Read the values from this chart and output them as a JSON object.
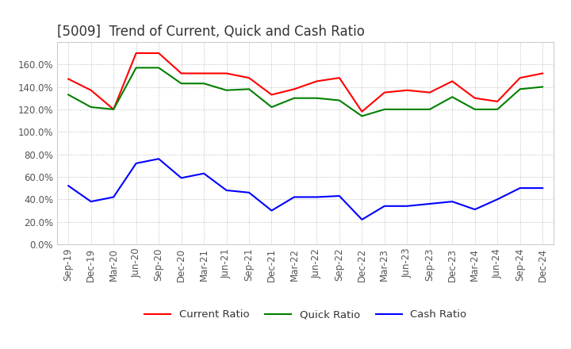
{
  "title": "[5009]  Trend of Current, Quick and Cash Ratio",
  "x_labels": [
    "Sep-19",
    "Dec-19",
    "Mar-20",
    "Jun-20",
    "Sep-20",
    "Dec-20",
    "Mar-21",
    "Jun-21",
    "Sep-21",
    "Dec-21",
    "Mar-22",
    "Jun-22",
    "Sep-22",
    "Dec-22",
    "Mar-23",
    "Jun-23",
    "Sep-23",
    "Dec-23",
    "Mar-24",
    "Jun-24",
    "Sep-24",
    "Dec-24"
  ],
  "current_ratio": [
    147,
    137,
    120,
    170,
    170,
    152,
    152,
    152,
    148,
    133,
    138,
    145,
    148,
    118,
    135,
    137,
    135,
    145,
    130,
    127,
    148,
    152
  ],
  "quick_ratio": [
    133,
    122,
    120,
    157,
    157,
    143,
    143,
    137,
    138,
    122,
    130,
    130,
    128,
    114,
    120,
    120,
    120,
    131,
    120,
    120,
    138,
    140
  ],
  "cash_ratio": [
    52,
    38,
    42,
    72,
    76,
    59,
    63,
    48,
    46,
    30,
    42,
    42,
    43,
    22,
    34,
    34,
    36,
    38,
    31,
    40,
    50,
    50
  ],
  "ylim": [
    0,
    180
  ],
  "yticks": [
    0,
    20,
    40,
    60,
    80,
    100,
    120,
    140,
    160
  ],
  "current_color": "#ff0000",
  "quick_color": "#008000",
  "cash_color": "#0000ff",
  "bg_color": "#ffffff",
  "grid_color": "#b0b0b0",
  "title_fontsize": 12,
  "tick_fontsize": 8.5,
  "legend_fontsize": 9.5
}
